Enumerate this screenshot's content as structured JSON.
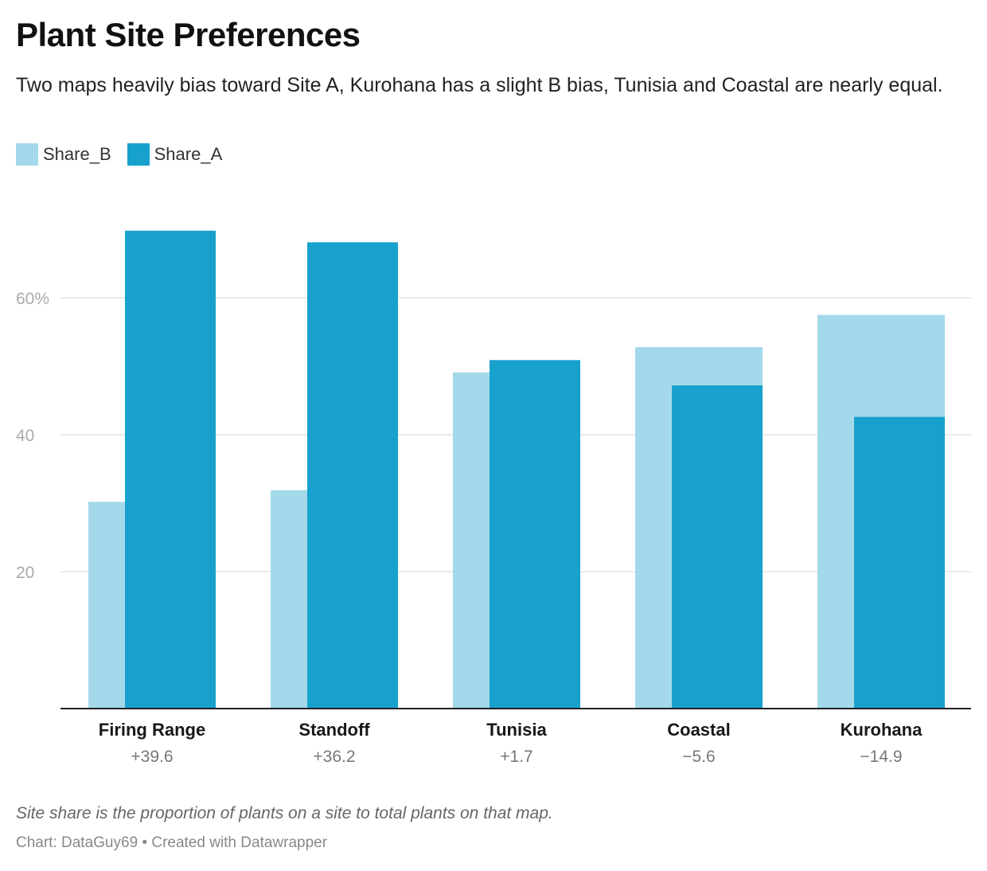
{
  "title": "Plant Site Preferences",
  "subtitle": "Two maps heavily bias toward Site A, Kurohana has a slight B bias, Tunisia and Coastal are nearly equal.",
  "notes": "Site share is the proportion of plants on a site to total plants on that map.",
  "byline": "Chart: DataGuy69 • Created with Datawrapper",
  "colors": {
    "share_b": "#a3d9ea",
    "share_a": "#18a1cd",
    "grid": "#e3e3e3",
    "axis": "#222222",
    "tick": "#aaaaaa",
    "diff": "#777777"
  },
  "chart_data": {
    "type": "bar",
    "categories": [
      "Firing Range",
      "Standoff",
      "Tunisia",
      "Coastal",
      "Kurohana"
    ],
    "differences": [
      "+39.6",
      "+36.2",
      "+1.7",
      "−5.6",
      "−14.9"
    ],
    "series": [
      {
        "name": "Share_B",
        "values": [
          30.2,
          31.9,
          49.1,
          52.8,
          57.5
        ]
      },
      {
        "name": "Share_A",
        "values": [
          69.8,
          68.1,
          50.9,
          47.2,
          42.6
        ]
      }
    ],
    "yticks": [
      {
        "value": 20,
        "label": "20"
      },
      {
        "value": 40,
        "label": "40"
      },
      {
        "value": 60,
        "label": "60%"
      }
    ],
    "ylim": [
      0,
      75
    ],
    "legend_position": "top-left",
    "grid": true
  }
}
